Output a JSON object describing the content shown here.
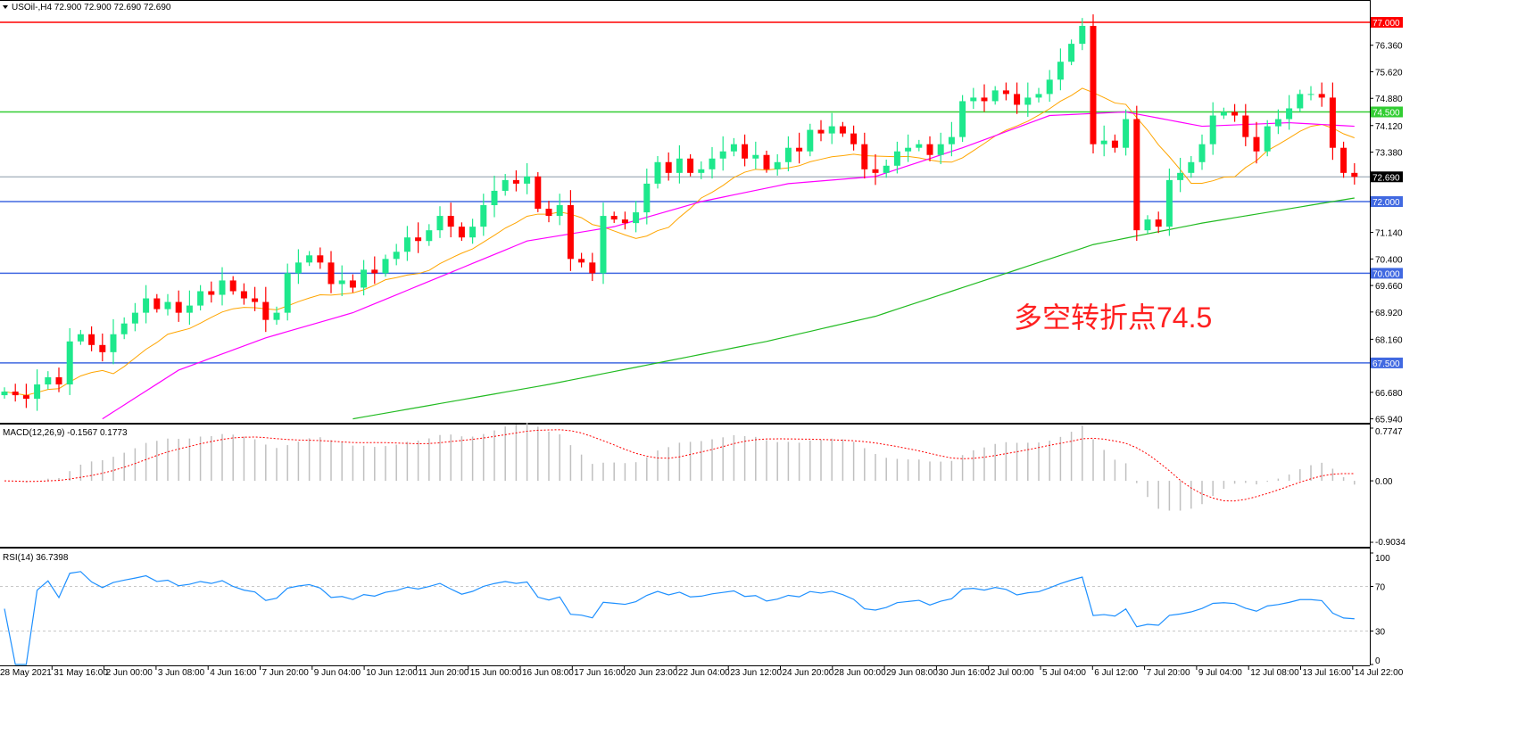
{
  "header": {
    "symbol_line": "USOil-,H4  72.900 72.900 72.690 72.690",
    "macd_label": "MACD(12,26,9) -0.1567 0.1773",
    "rsi_label": "RSI(14) 36.7398"
  },
  "annotation": {
    "text": "多空转折点74.5",
    "color": "#ff2020"
  },
  "colors": {
    "bull": "#1ee88c",
    "bear": "#ff0000",
    "ma_fast": "#ffa500",
    "ma_mid": "#ff00ff",
    "ma_slow": "#22bb22",
    "macd_hist": "#c0c0c0",
    "macd_signal": "#ff0000",
    "rsi": "#1e90ff"
  },
  "chart_data": [
    {
      "type": "candlestick",
      "title": "USOil-,H4",
      "ylim": [
        65.94,
        77.1
      ],
      "y_ticks": [
        "76.360",
        "75.620",
        "74.880",
        "74.120",
        "73.380",
        "71.140",
        "70.400",
        "69.660",
        "68.920",
        "68.160",
        "66.680",
        "65.940"
      ],
      "x_ticks": [
        "28 May 2021",
        "31 May 16:00",
        "2 Jun 00:00",
        "3 Jun 08:00",
        "4 Jun 16:00",
        "7 Jun 20:00",
        "9 Jun 04:00",
        "10 Jun 12:00",
        "11 Jun 20:00",
        "15 Jun 00:00",
        "16 Jun 08:00",
        "17 Jun 16:00",
        "20 Jun 23:00",
        "22 Jun 04:00",
        "23 Jun 12:00",
        "24 Jun 20:00",
        "28 Jun 00:00",
        "29 Jun 08:00",
        "30 Jun 16:00",
        "2 Jul 00:00",
        "5 Jul 04:00",
        "6 Jul 12:00",
        "7 Jul 20:00",
        "9 Jul 04:00",
        "12 Jul 08:00",
        "13 Jul 16:00",
        "14 Jul 22:00"
      ],
      "closes": [
        66.7,
        66.6,
        66.5,
        66.9,
        67.1,
        66.9,
        68.1,
        68.3,
        68.0,
        67.8,
        68.3,
        68.6,
        68.9,
        69.3,
        69.0,
        69.2,
        68.9,
        69.1,
        69.5,
        69.4,
        69.8,
        69.5,
        69.3,
        69.2,
        68.7,
        68.9,
        70.0,
        70.3,
        70.5,
        70.3,
        69.7,
        69.8,
        69.6,
        70.1,
        70.0,
        70.4,
        70.6,
        71.0,
        70.9,
        71.2,
        71.6,
        71.3,
        71.0,
        71.3,
        71.9,
        72.3,
        72.6,
        72.5,
        72.7,
        71.8,
        71.6,
        71.9,
        70.4,
        70.3,
        70.0,
        71.6,
        71.5,
        71.4,
        71.7,
        72.5,
        73.1,
        72.8,
        73.2,
        72.8,
        72.9,
        73.2,
        73.4,
        73.6,
        73.2,
        73.3,
        72.9,
        73.1,
        73.5,
        73.4,
        74.0,
        73.9,
        74.1,
        73.9,
        73.6,
        72.9,
        72.8,
        73.0,
        73.4,
        73.5,
        73.6,
        73.3,
        73.6,
        73.8,
        74.8,
        74.9,
        74.8,
        75.1,
        75.0,
        74.7,
        74.9,
        75.0,
        75.4,
        75.9,
        76.4,
        76.9,
        73.6,
        73.7,
        73.5,
        74.3,
        71.2,
        71.5,
        71.3,
        72.6,
        72.8,
        73.1,
        73.6,
        74.4,
        74.5,
        74.4,
        73.8,
        73.4,
        74.1,
        74.3,
        74.6,
        75.0,
        75.0,
        74.9,
        73.5,
        72.8,
        72.69
      ],
      "ma_mid_points": [
        [
          9,
          65.94
        ],
        [
          16,
          67.3
        ],
        [
          24,
          68.2
        ],
        [
          32,
          68.9
        ],
        [
          40,
          69.9
        ],
        [
          48,
          70.9
        ],
        [
          56,
          71.3
        ],
        [
          64,
          72.0
        ],
        [
          72,
          72.5
        ],
        [
          80,
          72.7
        ],
        [
          88,
          73.5
        ],
        [
          96,
          74.4
        ],
        [
          103,
          74.5
        ],
        [
          110,
          74.1
        ],
        [
          118,
          74.2
        ],
        [
          124,
          74.1
        ]
      ],
      "ma_slow_points": [
        [
          32,
          65.94
        ],
        [
          50,
          66.9
        ],
        [
          60,
          67.5
        ],
        [
          70,
          68.1
        ],
        [
          80,
          68.8
        ],
        [
          90,
          69.8
        ],
        [
          100,
          70.8
        ],
        [
          110,
          71.4
        ],
        [
          124,
          72.1
        ]
      ],
      "levels": [
        {
          "value": 77.0,
          "label": "77.000",
          "color": "#ff0000"
        },
        {
          "value": 74.5,
          "label": "74.500",
          "color": "#32cd32"
        },
        {
          "value": 72.69,
          "label": "72.690",
          "color": "#000000",
          "line": "#8a9aa8"
        },
        {
          "value": 72.0,
          "label": "72.000",
          "color": "#4169e1"
        },
        {
          "value": 70.0,
          "label": "70.000",
          "color": "#4169e1"
        },
        {
          "value": 67.5,
          "label": "67.500",
          "color": "#4169e1"
        }
      ]
    },
    {
      "type": "bar",
      "title": "MACD(12,26,9)",
      "ylim": [
        -0.9034,
        0.7747
      ],
      "y_ticks": [
        "0.7747",
        "0.00",
        "-0.9034"
      ]
    },
    {
      "type": "line",
      "title": "RSI(14)",
      "ylim": [
        0,
        100
      ],
      "y_ticks": [
        "100",
        "70",
        "30",
        "0"
      ],
      "levels": [
        70,
        30
      ]
    }
  ]
}
